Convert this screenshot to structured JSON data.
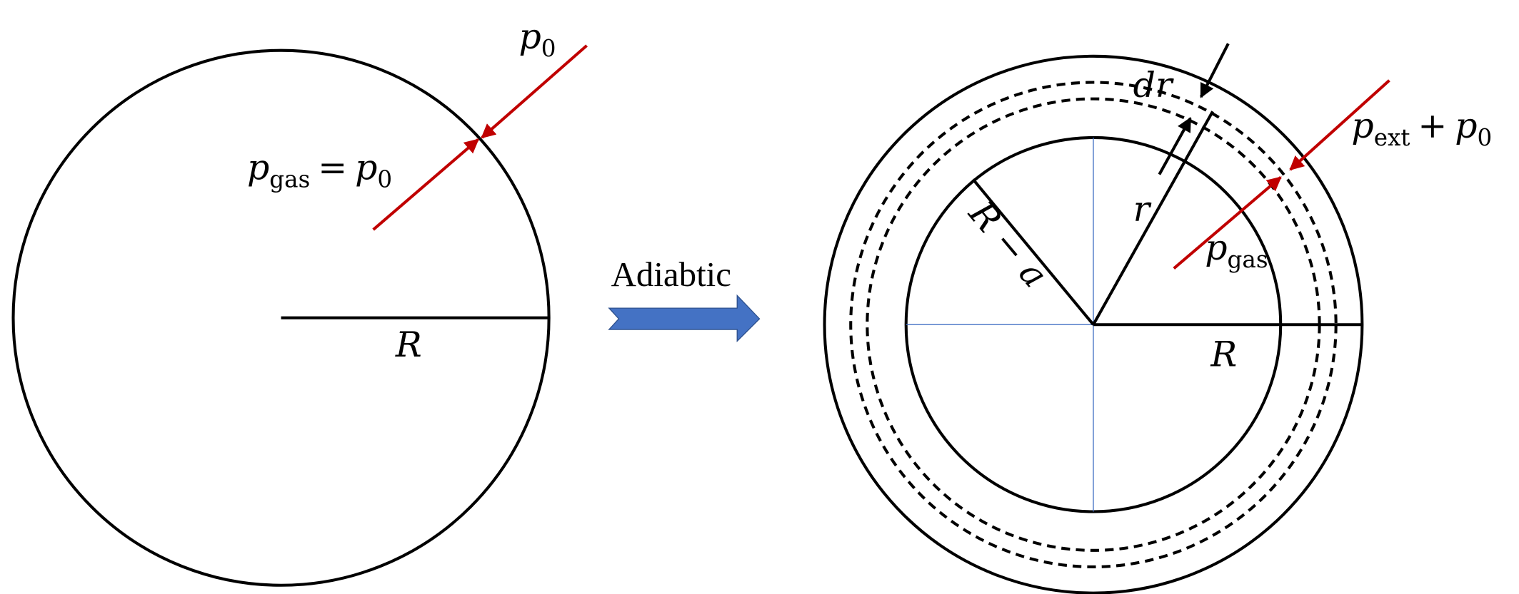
{
  "left": {
    "outside_pressure": {
      "symbol": "p",
      "subscript": "0"
    },
    "gas_pressure": {
      "symbol": "p",
      "subscript": "gas",
      "equals": "=",
      "rhs_symbol": "p",
      "rhs_subscript": "0"
    },
    "radius": "R"
  },
  "process": "Adiabtic",
  "right": {
    "shell_thickness": "dr",
    "outside_pressure": {
      "symbol": "p",
      "subscript": "ext",
      "plus": "+",
      "symbol2": "p",
      "subscript2": "0"
    },
    "shell_radius": "r",
    "inner_radius": "R − a",
    "gas_pressure": {
      "symbol": "p",
      "subscript": "gas"
    },
    "radius": "R"
  }
}
